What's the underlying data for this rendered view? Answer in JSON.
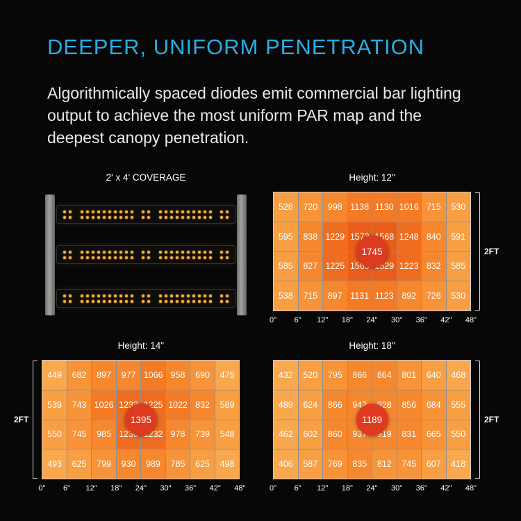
{
  "page": {
    "title": "DEEPER, UNIFORM PENETRATION",
    "subtitle": "Algorithmically spaced diodes emit commercial bar lighting output to achieve the most uniform PAR map and the deepest canopy penetration.",
    "accent_color": "#29ade4",
    "background_color": "#070707",
    "text_color": "#e9e9e9"
  },
  "coverage_diagram": {
    "title": "2' x 4' COVERAGE",
    "bar_count": 3,
    "dot_rows": 2,
    "dot_groups": [
      2,
      10,
      2,
      10,
      2
    ],
    "rail_color": "#8f8f8f",
    "led_color": "#ffb23e"
  },
  "heat_scale": [
    {
      "max": 500,
      "color": "#f9a84e"
    },
    {
      "max": 650,
      "color": "#f89f43"
    },
    {
      "max": 820,
      "color": "#f79339"
    },
    {
      "max": 1000,
      "color": "#f5872e"
    },
    {
      "max": 1150,
      "color": "#f37b26"
    },
    {
      "max": 1300,
      "color": "#ef6d20"
    },
    {
      "max": 9999,
      "color": "#ea5e1b"
    }
  ],
  "peak_color": "#de3a1f",
  "chart_data": [
    {
      "type": "heatmap",
      "title": "Height: 12\"",
      "y_label": "2FT",
      "y_label_side": "right",
      "peak_value": 1745,
      "x_ticks": [
        "0\"",
        "6\"",
        "12\"",
        "18\"",
        "24\"",
        "30\"",
        "36\"",
        "42\"",
        "48\""
      ],
      "values": [
        [
          528,
          720,
          998,
          1138,
          1130,
          1016,
          715,
          530
        ],
        [
          595,
          838,
          1229,
          1573,
          1568,
          1248,
          840,
          591
        ],
        [
          585,
          827,
          1225,
          1565,
          1529,
          1223,
          832,
          585
        ],
        [
          538,
          715,
          897,
          1131,
          1123,
          892,
          726,
          530
        ]
      ]
    },
    {
      "type": "heatmap",
      "title": "Height: 14\"",
      "y_label": "2FT",
      "y_label_side": "left",
      "peak_value": 1395,
      "x_ticks": [
        "0\"",
        "6\"",
        "12\"",
        "18\"",
        "24\"",
        "30\"",
        "36\"",
        "42\"",
        "48\""
      ],
      "values": [
        [
          449,
          682,
          897,
          977,
          1066,
          958,
          690,
          475
        ],
        [
          539,
          743,
          1026,
          1233,
          1225,
          1022,
          832,
          589
        ],
        [
          550,
          745,
          985,
          1238,
          1232,
          978,
          739,
          548
        ],
        [
          493,
          625,
          799,
          930,
          989,
          785,
          625,
          498
        ]
      ]
    },
    {
      "type": "heatmap",
      "title": "Height: 18\"",
      "y_label": "2FT",
      "y_label_side": "right",
      "peak_value": 1189,
      "x_ticks": [
        "0\"",
        "6\"",
        "12\"",
        "18\"",
        "24\"",
        "30\"",
        "36\"",
        "42\"",
        "48\""
      ],
      "values": [
        [
          432,
          520,
          795,
          866,
          864,
          801,
          640,
          468
        ],
        [
          489,
          624,
          866,
          942,
          928,
          856,
          684,
          555
        ],
        [
          462,
          602,
          860,
          937,
          919,
          831,
          665,
          550
        ],
        [
          406,
          587,
          769,
          835,
          812,
          745,
          607,
          418
        ]
      ]
    }
  ]
}
